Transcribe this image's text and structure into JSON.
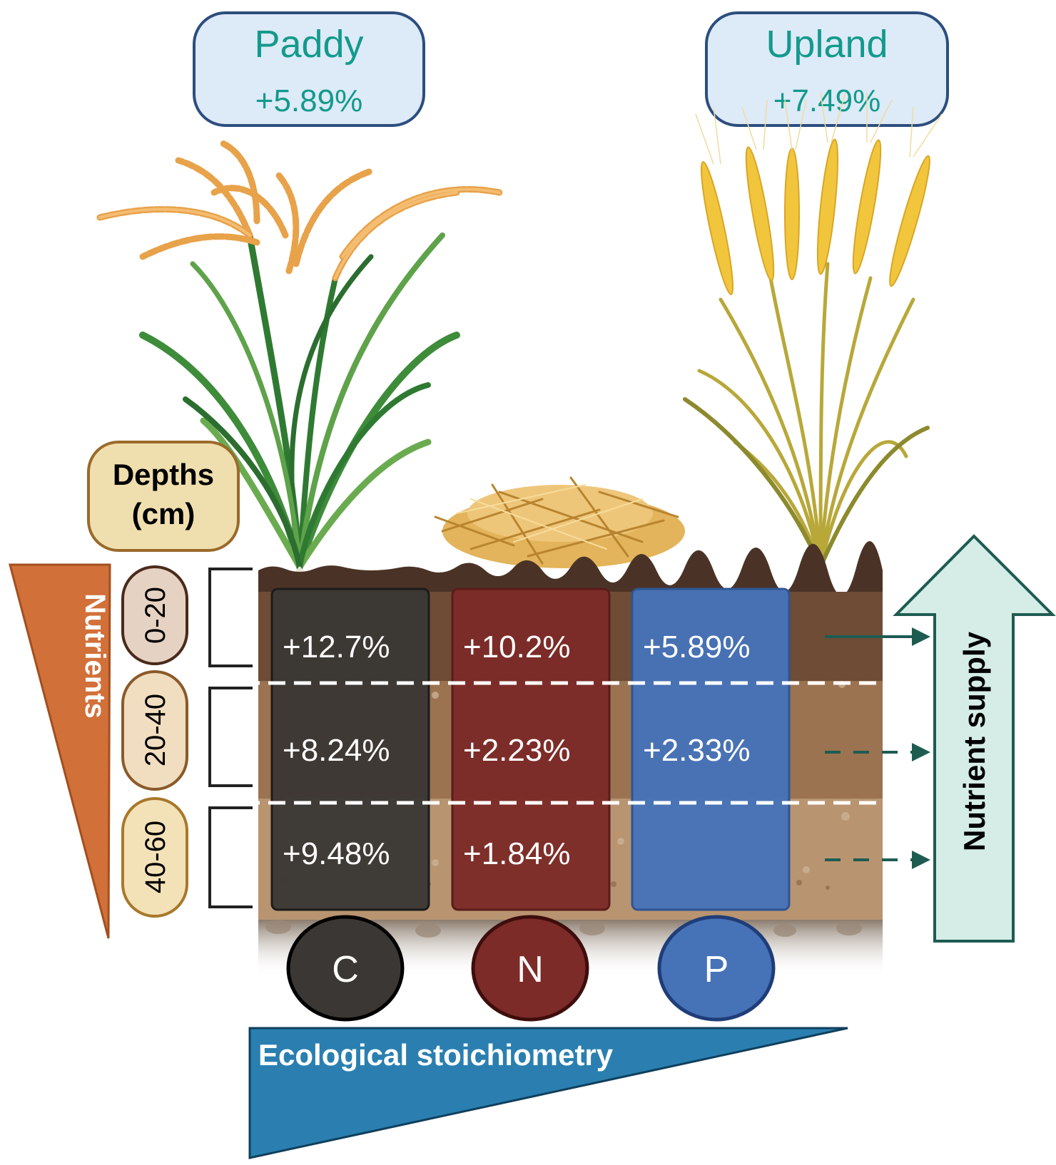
{
  "systems": [
    {
      "name": "Paddy",
      "value": "+5.89%"
    },
    {
      "name": "Upland",
      "value": "+7.49%"
    }
  ],
  "depths_header": {
    "line1": "Depths",
    "line2": "(cm)"
  },
  "depth_layers": [
    "0-20",
    "20-40",
    "40-60"
  ],
  "nutrients_label": "Nutrients",
  "elements": [
    {
      "symbol": "C",
      "values": [
        "+12.7%",
        "+8.24%",
        "+9.48%"
      ],
      "color": "#3a3734"
    },
    {
      "symbol": "N",
      "values": [
        "+10.2%",
        "+2.23%",
        "+1.84%"
      ],
      "color": "#7c2b28"
    },
    {
      "symbol": "P",
      "values": [
        "+5.89%",
        "+2.33%",
        ""
      ],
      "color": "#4672b8"
    }
  ],
  "nutrient_supply_label": "Nutrient supply",
  "stoichiometry_label": "Ecological stoichiometry",
  "colors": {
    "teal_text": "#139a8c",
    "system_box_fill": "#ddeaf7",
    "system_box_stroke": "#2c4e7e",
    "nutrients_wedge": "#d2703a",
    "stoichiometry_wedge": "#2a7fb0",
    "supply_arrow_fill": "#d5ede6",
    "supply_arrow_stroke": "#1e5c52",
    "depth_label_fill": "#eddcc0",
    "depth_label_stroke": "#9a6a2a"
  }
}
